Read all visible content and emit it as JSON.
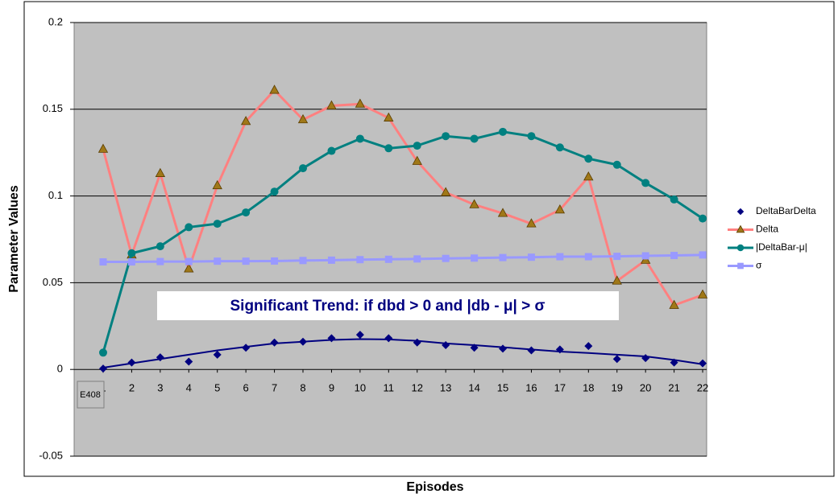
{
  "chart_data": {
    "type": "line",
    "xlabel": "Episodes",
    "ylabel": "Parameter Values",
    "annotation": "Significant Trend: if dbd > 0 and |db - μ| > σ",
    "cell_tag": "E408",
    "categories": [
      "1",
      "2",
      "3",
      "4",
      "5",
      "6",
      "7",
      "8",
      "9",
      "10",
      "11",
      "12",
      "13",
      "14",
      "15",
      "16",
      "17",
      "18",
      "19",
      "20",
      "21",
      "22"
    ],
    "ylim": [
      -0.05,
      0.2
    ],
    "yticks": [
      -0.05,
      0,
      0.05,
      0.1,
      0.15,
      0.2
    ],
    "grid": true,
    "legend": "right",
    "series": [
      {
        "name": "DeltaBarDelta",
        "color": "#000080",
        "marker": "diamond",
        "line": false,
        "values": [
          0.0005,
          0.004,
          0.007,
          0.0045,
          0.0085,
          0.0125,
          0.0155,
          0.016,
          0.018,
          0.02,
          0.018,
          0.0155,
          0.014,
          0.0125,
          0.012,
          0.011,
          0.0115,
          0.0135,
          0.006,
          0.0065,
          0.004,
          0.0035
        ],
        "trend_values": [
          0.001,
          0.0035,
          0.006,
          0.0085,
          0.011,
          0.013,
          0.015,
          0.016,
          0.017,
          0.0175,
          0.0173,
          0.0165,
          0.015,
          0.014,
          0.0128,
          0.0115,
          0.0103,
          0.0095,
          0.0085,
          0.0075,
          0.0055,
          0.003
        ]
      },
      {
        "name": "Delta",
        "color": "#ff8080",
        "marker_color": "#a07818",
        "marker": "triangle",
        "line": true,
        "values": [
          0.127,
          0.066,
          0.113,
          0.058,
          0.106,
          0.143,
          0.161,
          0.144,
          0.152,
          0.153,
          0.145,
          0.12,
          0.102,
          0.095,
          0.09,
          0.084,
          0.092,
          0.111,
          0.051,
          0.063,
          0.037,
          0.043
        ]
      },
      {
        "name": "|DeltaBar-μ|",
        "color": "#008080",
        "marker": "circle",
        "line": true,
        "values": [
          0.0097,
          0.067,
          0.071,
          0.082,
          0.084,
          0.0905,
          0.1025,
          0.116,
          0.126,
          0.133,
          0.1275,
          0.129,
          0.1345,
          0.133,
          0.137,
          0.1345,
          0.128,
          0.1215,
          0.118,
          0.1075,
          0.098,
          0.087
        ]
      },
      {
        "name": "σ",
        "color": "#9999ff",
        "marker": "square",
        "line": true,
        "values": [
          0.062,
          0.062,
          0.0622,
          0.0622,
          0.0624,
          0.0624,
          0.0625,
          0.0628,
          0.063,
          0.0633,
          0.0635,
          0.0637,
          0.064,
          0.0642,
          0.0645,
          0.0647,
          0.065,
          0.065,
          0.0652,
          0.0655,
          0.0657,
          0.066
        ]
      }
    ]
  }
}
